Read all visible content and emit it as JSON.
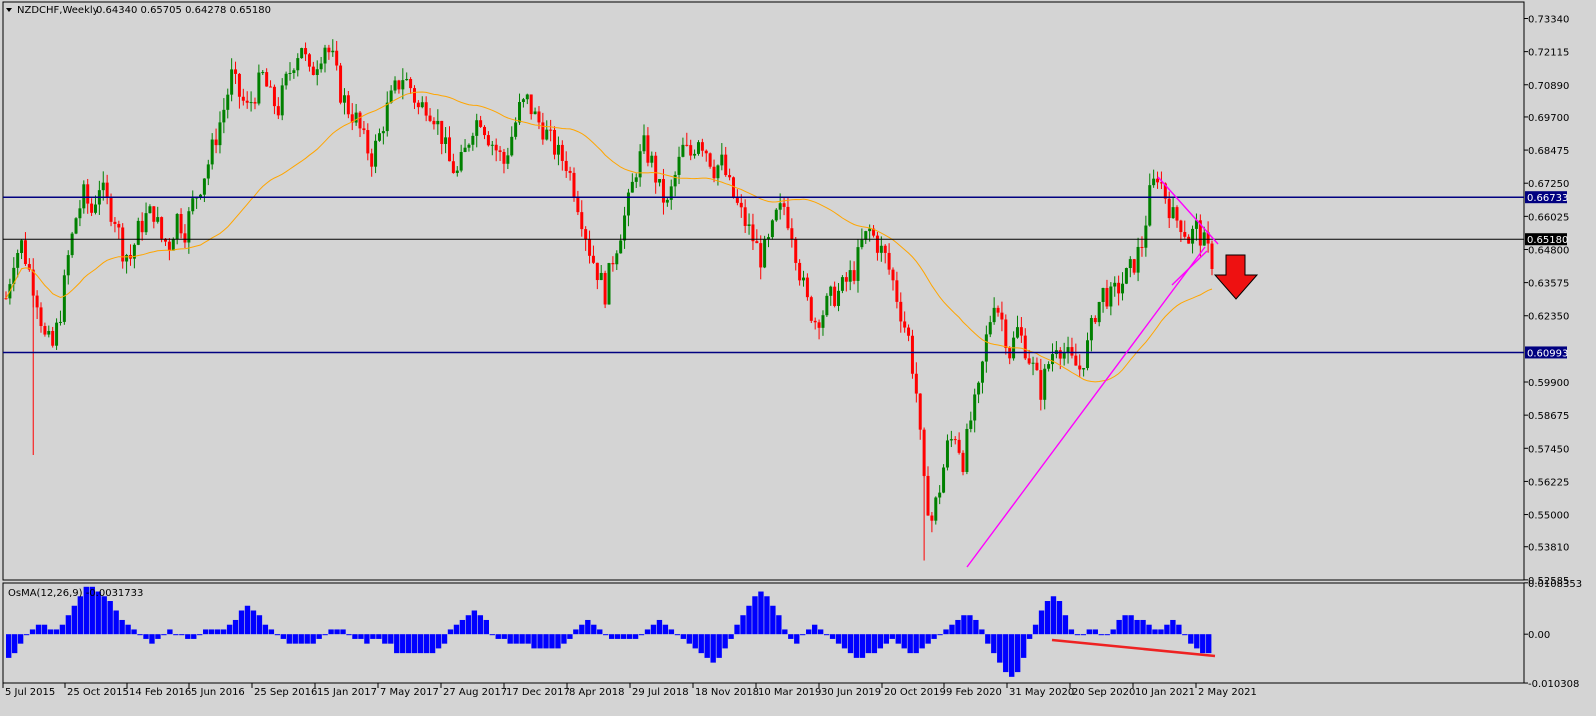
{
  "chart_data": [
    {
      "type": "candlestick",
      "symbol": "NZDCHF,Weekly",
      "ohlc_header": "0.64340 0.65705 0.64278 0.65180",
      "ylim": [
        0.5258,
        0.7395
      ],
      "y_ticks": [
        "0.73340",
        "0.72115",
        "0.70890",
        "0.69700",
        "0.68475",
        "0.67250",
        "0.66025",
        "0.64800",
        "0.63575",
        "0.62350",
        "0.59900",
        "0.58675",
        "0.57450",
        "0.56225",
        "0.55000",
        "0.53810",
        "0.52585"
      ],
      "x_ticks": [
        "5 Jul 2015",
        "25 Oct 2015",
        "14 Feb 2016",
        "5 Jun 2016",
        "25 Sep 2016",
        "15 Jan 2017",
        "7 May 2017",
        "27 Aug 2017",
        "17 Dec 2017",
        "8 Apr 2018",
        "29 Jul 2018",
        "18 Nov 2018",
        "10 Mar 2019",
        "30 Jun 2019",
        "20 Oct 2019",
        "9 Feb 2020",
        "31 May 2020",
        "20 Sep 2020",
        "10 Jan 2021",
        "2 May 2021"
      ],
      "horizontal_levels": [
        {
          "value": "0.66733",
          "color": "#000080"
        },
        {
          "value": "0.65180",
          "color": "#000000"
        },
        {
          "value": "0.60993",
          "color": "#000080"
        }
      ],
      "close_path": [
        [
          0,
          0.63
        ],
        [
          2,
          0.645
        ],
        [
          4,
          0.65
        ],
        [
          6,
          0.64
        ],
        [
          8,
          0.63
        ],
        [
          10,
          0.615
        ],
        [
          12,
          0.612
        ],
        [
          14,
          0.625
        ],
        [
          16,
          0.645
        ],
        [
          18,
          0.66
        ],
        [
          20,
          0.668
        ],
        [
          22,
          0.662
        ],
        [
          24,
          0.672
        ],
        [
          26,
          0.665
        ],
        [
          28,
          0.66
        ],
        [
          30,
          0.648
        ],
        [
          32,
          0.645
        ],
        [
          34,
          0.655
        ],
        [
          36,
          0.66
        ],
        [
          38,
          0.662
        ],
        [
          40,
          0.652
        ],
        [
          42,
          0.65
        ],
        [
          44,
          0.66
        ],
        [
          46,
          0.655
        ],
        [
          48,
          0.665
        ],
        [
          50,
          0.672
        ],
        [
          52,
          0.68
        ],
        [
          54,
          0.69
        ],
        [
          56,
          0.7
        ],
        [
          58,
          0.712
        ],
        [
          60,
          0.705
        ],
        [
          62,
          0.7
        ],
        [
          64,
          0.706
        ],
        [
          66,
          0.712
        ],
        [
          68,
          0.704
        ],
        [
          70,
          0.7
        ],
        [
          72,
          0.71
        ],
        [
          74,
          0.718
        ],
        [
          76,
          0.724
        ],
        [
          78,
          0.712
        ],
        [
          80,
          0.718
        ],
        [
          82,
          0.724
        ],
        [
          84,
          0.718
        ],
        [
          86,
          0.706
        ],
        [
          88,
          0.7
        ],
        [
          90,
          0.696
        ],
        [
          92,
          0.688
        ],
        [
          94,
          0.682
        ],
        [
          96,
          0.69
        ],
        [
          98,
          0.7
        ],
        [
          100,
          0.707
        ],
        [
          102,
          0.712
        ],
        [
          104,
          0.708
        ],
        [
          106,
          0.7
        ],
        [
          108,
          0.702
        ],
        [
          110,
          0.698
        ],
        [
          112,
          0.69
        ],
        [
          114,
          0.68
        ],
        [
          116,
          0.676
        ],
        [
          118,
          0.684
        ],
        [
          120,
          0.694
        ],
        [
          122,
          0.697
        ],
        [
          124,
          0.69
        ],
        [
          126,
          0.685
        ],
        [
          128,
          0.68
        ],
        [
          130,
          0.69
        ],
        [
          132,
          0.7
        ],
        [
          134,
          0.703
        ],
        [
          136,
          0.697
        ],
        [
          138,
          0.693
        ],
        [
          140,
          0.688
        ],
        [
          142,
          0.683
        ],
        [
          144,
          0.68
        ],
        [
          146,
          0.671
        ],
        [
          148,
          0.66
        ],
        [
          150,
          0.648
        ],
        [
          152,
          0.64
        ],
        [
          154,
          0.632
        ],
        [
          156,
          0.645
        ],
        [
          158,
          0.655
        ],
        [
          160,
          0.665
        ],
        [
          162,
          0.678
        ],
        [
          164,
          0.686
        ],
        [
          166,
          0.68
        ],
        [
          168,
          0.67
        ],
        [
          170,
          0.664
        ],
        [
          172,
          0.675
        ],
        [
          174,
          0.685
        ],
        [
          176,
          0.683
        ],
        [
          178,
          0.69
        ],
        [
          180,
          0.685
        ],
        [
          182,
          0.678
        ],
        [
          184,
          0.68
        ],
        [
          186,
          0.671
        ],
        [
          188,
          0.664
        ],
        [
          190,
          0.658
        ],
        [
          192,
          0.652
        ],
        [
          194,
          0.645
        ],
        [
          196,
          0.65
        ],
        [
          198,
          0.66
        ],
        [
          200,
          0.664
        ],
        [
          202,
          0.655
        ],
        [
          204,
          0.64
        ],
        [
          206,
          0.628
        ],
        [
          208,
          0.622
        ],
        [
          210,
          0.625
        ],
        [
          212,
          0.63
        ],
        [
          214,
          0.632
        ],
        [
          216,
          0.636
        ],
        [
          218,
          0.64
        ],
        [
          220,
          0.65
        ],
        [
          222,
          0.655
        ],
        [
          224,
          0.65
        ],
        [
          226,
          0.645
        ],
        [
          228,
          0.636
        ],
        [
          230,
          0.625
        ],
        [
          232,
          0.615
        ],
        [
          234,
          0.595
        ],
        [
          236,
          0.56
        ],
        [
          238,
          0.548
        ],
        [
          240,
          0.56
        ],
        [
          242,
          0.575
        ],
        [
          244,
          0.58
        ],
        [
          246,
          0.57
        ],
        [
          248,
          0.585
        ],
        [
          250,
          0.595
        ],
        [
          252,
          0.615
        ],
        [
          254,
          0.63
        ],
        [
          256,
          0.622
        ],
        [
          258,
          0.61
        ],
        [
          260,
          0.618
        ],
        [
          262,
          0.612
        ],
        [
          264,
          0.604
        ],
        [
          266,
          0.596
        ],
        [
          268,
          0.606
        ],
        [
          270,
          0.614
        ],
        [
          272,
          0.61
        ],
        [
          274,
          0.606
        ],
        [
          276,
          0.604
        ],
        [
          278,
          0.612
        ],
        [
          280,
          0.625
        ],
        [
          282,
          0.632
        ],
        [
          284,
          0.63
        ],
        [
          286,
          0.634
        ],
        [
          288,
          0.638
        ],
        [
          290,
          0.643
        ],
        [
          292,
          0.65
        ],
        [
          294,
          0.668
        ],
        [
          296,
          0.676
        ],
        [
          298,
          0.668
        ],
        [
          300,
          0.66
        ],
        [
          302,
          0.658
        ],
        [
          304,
          0.652
        ],
        [
          306,
          0.656
        ],
        [
          308,
          0.65
        ],
        [
          310,
          0.644
        ]
      ],
      "indicators": [
        {
          "name": "MA",
          "color": "#ffa500"
        },
        {
          "name": "trendline",
          "color": "#ff00ff"
        }
      ],
      "annotation": {
        "icon": "down-arrow-icon",
        "color": "#ee1111"
      }
    },
    {
      "type": "histogram",
      "indicator_label": "OsMA(12,26,9) -0.0031733",
      "ylim": [
        -0.0103,
        0.0108
      ],
      "y_ticks": [
        "0.0108353",
        "0.00",
        "-0.010308"
      ],
      "series_color": "#0000ff",
      "divergence_line": {
        "color": "#ee2222"
      },
      "values": [
        -0.005,
        -0.004,
        -0.002,
        0.0,
        0.001,
        0.002,
        0.002,
        0.001,
        0.001,
        0.002,
        0.004,
        0.006,
        0.008,
        0.01,
        0.01,
        0.009,
        0.008,
        0.007,
        0.005,
        0.003,
        0.002,
        0.001,
        0.0,
        -0.001,
        -0.002,
        -0.001,
        0.0,
        0.001,
        0.0,
        0.0,
        -0.001,
        -0.001,
        0.0,
        0.001,
        0.001,
        0.001,
        0.001,
        0.002,
        0.003,
        0.005,
        0.006,
        0.005,
        0.004,
        0.002,
        0.001,
        0.0,
        -0.001,
        -0.002,
        -0.002,
        -0.002,
        -0.002,
        -0.002,
        -0.001,
        0.0,
        0.001,
        0.001,
        0.001,
        0.0,
        -0.001,
        -0.001,
        -0.002,
        -0.001,
        -0.001,
        -0.002,
        -0.002,
        -0.004,
        -0.004,
        -0.004,
        -0.004,
        -0.004,
        -0.004,
        -0.004,
        -0.003,
        -0.002,
        0.001,
        0.002,
        0.003,
        0.004,
        0.005,
        0.004,
        0.003,
        0.0,
        -0.001,
        -0.001,
        -0.002,
        -0.002,
        -0.002,
        -0.002,
        -0.003,
        -0.003,
        -0.003,
        -0.003,
        -0.003,
        -0.002,
        -0.001,
        0.001,
        0.002,
        0.003,
        0.002,
        0.001,
        0.0,
        -0.001,
        -0.001,
        -0.001,
        -0.001,
        -0.001,
        0.0,
        0.001,
        0.002,
        0.003,
        0.002,
        0.001,
        0.0,
        -0.001,
        -0.002,
        -0.003,
        -0.004,
        -0.005,
        -0.006,
        -0.005,
        -0.003,
        -0.001,
        0.002,
        0.004,
        0.006,
        0.008,
        0.009,
        0.008,
        0.006,
        0.004,
        0.001,
        -0.001,
        -0.002,
        0.0,
        0.001,
        0.002,
        0.001,
        0.0,
        -0.001,
        -0.002,
        -0.003,
        -0.004,
        -0.005,
        -0.005,
        -0.004,
        -0.004,
        -0.003,
        -0.002,
        -0.001,
        -0.002,
        -0.003,
        -0.004,
        -0.004,
        -0.003,
        -0.002,
        -0.001,
        0.0,
        0.001,
        0.002,
        0.003,
        0.004,
        0.004,
        0.003,
        0.001,
        -0.002,
        -0.004,
        -0.006,
        -0.008,
        -0.009,
        -0.008,
        -0.005,
        -0.001,
        0.002,
        0.005,
        0.007,
        0.008,
        0.007,
        0.004,
        0.001,
        0.0,
        0.0,
        0.001,
        0.001,
        0.0,
        0.0,
        0.001,
        0.003,
        0.004,
        0.004,
        0.003,
        0.003,
        0.002,
        0.001,
        0.001,
        0.002,
        0.003,
        0.002,
        0.0,
        -0.002,
        -0.003,
        -0.004,
        -0.004
      ]
    }
  ]
}
